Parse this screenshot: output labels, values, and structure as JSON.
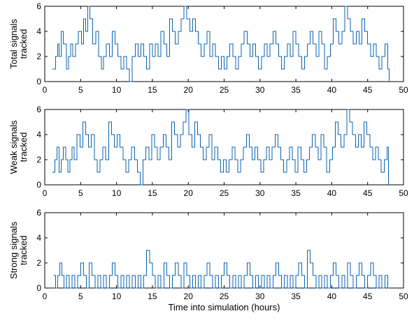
{
  "chart_data": [
    {
      "type": "line",
      "line_style": "step",
      "color": "#0b62b0",
      "ylabel_lines": [
        "Total signals",
        "tracked"
      ],
      "xlim": [
        0,
        50
      ],
      "ylim": [
        0,
        6
      ],
      "xticks": [
        0,
        5,
        10,
        15,
        20,
        25,
        30,
        35,
        40,
        45,
        50
      ],
      "yticks": [
        0,
        2,
        4,
        6
      ],
      "series": [
        {
          "x": [
            1.0,
            1.5,
            1.8,
            2.0,
            2.3,
            2.6,
            3.0,
            3.3,
            3.6,
            3.9,
            4.3,
            4.7,
            5.1,
            5.4,
            5.7,
            6.0,
            6.3,
            6.7,
            7.1,
            7.5,
            7.9,
            8.2,
            8.6,
            9.0,
            9.4,
            9.8,
            10.2,
            10.6,
            11.0,
            11.4,
            11.8,
            12.2,
            12.6,
            13.0,
            13.4,
            13.8,
            14.2,
            14.6,
            15.0,
            15.4,
            15.8,
            16.2,
            16.6,
            17.0,
            17.4,
            17.8,
            18.2,
            18.6,
            19.0,
            19.4,
            19.8,
            20.2,
            20.6,
            21.0,
            21.4,
            21.8,
            22.2,
            22.6,
            23.0,
            23.4,
            23.8,
            24.2,
            24.6,
            25.0,
            25.4,
            25.8,
            26.2,
            26.6,
            27.0,
            27.4,
            27.8,
            28.2,
            28.6,
            29.0,
            29.4,
            29.8,
            30.2,
            30.6,
            31.0,
            31.4,
            31.8,
            32.2,
            32.6,
            33.0,
            33.4,
            33.8,
            34.2,
            34.6,
            35.0,
            35.4,
            35.8,
            36.2,
            36.6,
            37.0,
            37.4,
            37.8,
            38.2,
            38.6,
            39.0,
            39.4,
            39.8,
            40.2,
            40.6,
            41.0,
            41.4,
            41.8,
            42.2,
            42.6,
            43.0,
            43.4,
            43.8,
            44.2,
            44.6,
            45.0,
            45.4,
            45.8,
            46.2,
            46.6,
            47.0,
            47.4,
            47.8
          ],
          "y": [
            1,
            2,
            3,
            2,
            4,
            3,
            1,
            2,
            3,
            2,
            3,
            4,
            3,
            5,
            4,
            6,
            5,
            3,
            4,
            2,
            1,
            2,
            3,
            2,
            4,
            3,
            2,
            1,
            2,
            1,
            0,
            2,
            3,
            2,
            3,
            2,
            1,
            3,
            2,
            3,
            2,
            4,
            3,
            2,
            5,
            4,
            3,
            4,
            5,
            6,
            5,
            4,
            5,
            4,
            3,
            2,
            3,
            4,
            2,
            3,
            2,
            1,
            2,
            1,
            2,
            3,
            2,
            1,
            2,
            3,
            4,
            3,
            2,
            3,
            2,
            1,
            2,
            3,
            2,
            3,
            4,
            3,
            2,
            1,
            2,
            3,
            2,
            4,
            3,
            2,
            1,
            2,
            3,
            4,
            3,
            2,
            4,
            3,
            1,
            2,
            3,
            5,
            4,
            3,
            4,
            6,
            5,
            4,
            3,
            4,
            3,
            5,
            4,
            3,
            2,
            3,
            2,
            1,
            2,
            3,
            1
          ]
        }
      ]
    },
    {
      "type": "line",
      "line_style": "step",
      "color": "#0b62b0",
      "ylabel_lines": [
        "Weak signals",
        "tracked"
      ],
      "xlim": [
        0,
        50
      ],
      "ylim": [
        0,
        6
      ],
      "xticks": [
        0,
        5,
        10,
        15,
        20,
        25,
        30,
        35,
        40,
        45,
        50
      ],
      "yticks": [
        0,
        2,
        4,
        6
      ],
      "series": [
        {
          "x": [
            1.0,
            1.4,
            1.7,
            2.0,
            2.3,
            2.6,
            2.9,
            3.2,
            3.5,
            3.8,
            4.1,
            4.5,
            4.9,
            5.3,
            5.7,
            6.1,
            6.5,
            6.9,
            7.3,
            7.7,
            8.1,
            8.5,
            8.9,
            9.3,
            9.7,
            10.1,
            10.5,
            10.9,
            11.3,
            11.7,
            12.1,
            12.5,
            12.9,
            13.3,
            13.7,
            14.1,
            14.5,
            14.9,
            15.3,
            15.7,
            16.1,
            16.5,
            16.9,
            17.3,
            17.7,
            18.1,
            18.5,
            18.9,
            19.3,
            19.7,
            20.1,
            20.5,
            20.9,
            21.3,
            21.7,
            22.1,
            22.5,
            22.9,
            23.3,
            23.7,
            24.1,
            24.5,
            24.9,
            25.3,
            25.7,
            26.1,
            26.5,
            26.9,
            27.3,
            27.7,
            28.1,
            28.5,
            28.9,
            29.3,
            29.7,
            30.1,
            30.5,
            30.9,
            31.3,
            31.7,
            32.1,
            32.5,
            32.9,
            33.3,
            33.7,
            34.1,
            34.5,
            34.9,
            35.3,
            35.7,
            36.1,
            36.5,
            36.9,
            37.3,
            37.7,
            38.1,
            38.5,
            38.9,
            39.3,
            39.7,
            40.1,
            40.5,
            40.9,
            41.3,
            41.7,
            42.1,
            42.5,
            42.9,
            43.3,
            43.7,
            44.1,
            44.5,
            44.9,
            45.3,
            45.7,
            46.1,
            46.5,
            46.9,
            47.3,
            47.7
          ],
          "y": [
            1,
            2,
            3,
            1,
            2,
            3,
            2,
            1,
            2,
            3,
            2,
            4,
            3,
            5,
            4,
            3,
            4,
            2,
            1,
            2,
            3,
            2,
            5,
            4,
            3,
            4,
            3,
            2,
            1,
            2,
            3,
            2,
            1,
            0,
            2,
            3,
            2,
            4,
            3,
            2,
            3,
            4,
            3,
            2,
            5,
            4,
            3,
            4,
            5,
            6,
            4,
            3,
            5,
            4,
            3,
            2,
            3,
            4,
            2,
            3,
            2,
            1,
            2,
            1,
            2,
            3,
            2,
            1,
            2,
            3,
            4,
            3,
            2,
            3,
            2,
            1,
            2,
            3,
            2,
            3,
            4,
            3,
            2,
            1,
            2,
            3,
            2,
            1,
            3,
            2,
            1,
            2,
            3,
            4,
            3,
            2,
            4,
            3,
            1,
            2,
            3,
            5,
            4,
            3,
            4,
            6,
            5,
            4,
            3,
            4,
            3,
            5,
            4,
            3,
            2,
            3,
            2,
            1,
            2,
            3
          ]
        }
      ]
    },
    {
      "type": "line",
      "line_style": "step",
      "color": "#0b62b0",
      "ylabel_lines": [
        "Strong signals",
        "tracked"
      ],
      "xlim": [
        0,
        50
      ],
      "ylim": [
        0,
        6
      ],
      "xticks": [
        0,
        5,
        10,
        15,
        20,
        25,
        30,
        35,
        40,
        45,
        50
      ],
      "yticks": [
        0,
        2,
        4,
        6
      ],
      "xlabel": "Time into simulation (hours)",
      "series": [
        {
          "x": [
            1.2,
            1.5,
            1.8,
            2.1,
            2.4,
            2.7,
            3.0,
            3.4,
            3.8,
            4.2,
            4.6,
            5.0,
            5.4,
            5.8,
            6.2,
            6.6,
            7.0,
            7.4,
            7.8,
            8.2,
            8.6,
            9.0,
            9.4,
            9.8,
            10.2,
            10.6,
            11.0,
            11.4,
            11.8,
            12.2,
            12.6,
            13.0,
            13.4,
            13.8,
            14.2,
            14.6,
            15.0,
            15.4,
            15.8,
            16.2,
            16.6,
            17.0,
            17.4,
            17.8,
            18.2,
            18.6,
            19.0,
            19.4,
            19.8,
            20.2,
            20.6,
            21.0,
            21.4,
            21.8,
            22.2,
            22.6,
            23.0,
            23.4,
            23.8,
            24.2,
            24.6,
            25.0,
            25.4,
            25.8,
            26.2,
            26.6,
            27.0,
            27.4,
            27.8,
            28.2,
            28.6,
            29.0,
            29.4,
            29.8,
            30.2,
            30.6,
            31.0,
            31.4,
            31.8,
            32.2,
            32.6,
            33.0,
            33.4,
            33.8,
            34.2,
            34.6,
            35.0,
            35.4,
            35.8,
            36.2,
            36.6,
            37.0,
            37.4,
            37.8,
            38.2,
            38.6,
            39.0,
            39.4,
            39.8,
            40.2,
            40.6,
            41.0,
            41.4,
            41.8,
            42.2,
            42.6,
            43.0,
            43.4,
            43.8,
            44.2,
            44.6,
            45.0,
            45.4,
            45.8,
            46.2,
            46.6,
            47.0,
            47.4,
            47.8
          ],
          "y": [
            1,
            0,
            1,
            2,
            1,
            0,
            1,
            0,
            1,
            0,
            1,
            2,
            1,
            0,
            2,
            1,
            0,
            1,
            0,
            1,
            0,
            1,
            2,
            1,
            0,
            1,
            0,
            1,
            0,
            1,
            0,
            1,
            0,
            1,
            3,
            2,
            1,
            0,
            1,
            0,
            2,
            1,
            0,
            1,
            2,
            1,
            0,
            2,
            1,
            0,
            1,
            0,
            1,
            0,
            1,
            2,
            1,
            0,
            1,
            0,
            1,
            2,
            1,
            0,
            1,
            0,
            1,
            0,
            1,
            2,
            1,
            0,
            1,
            0,
            1,
            0,
            1,
            0,
            1,
            2,
            1,
            0,
            1,
            0,
            1,
            0,
            1,
            2,
            1,
            0,
            3,
            2,
            1,
            0,
            1,
            0,
            1,
            0,
            1,
            2,
            1,
            0,
            1,
            0,
            2,
            1,
            0,
            1,
            2,
            1,
            0,
            1,
            2,
            1,
            0,
            1,
            0,
            1,
            0
          ]
        }
      ]
    }
  ]
}
